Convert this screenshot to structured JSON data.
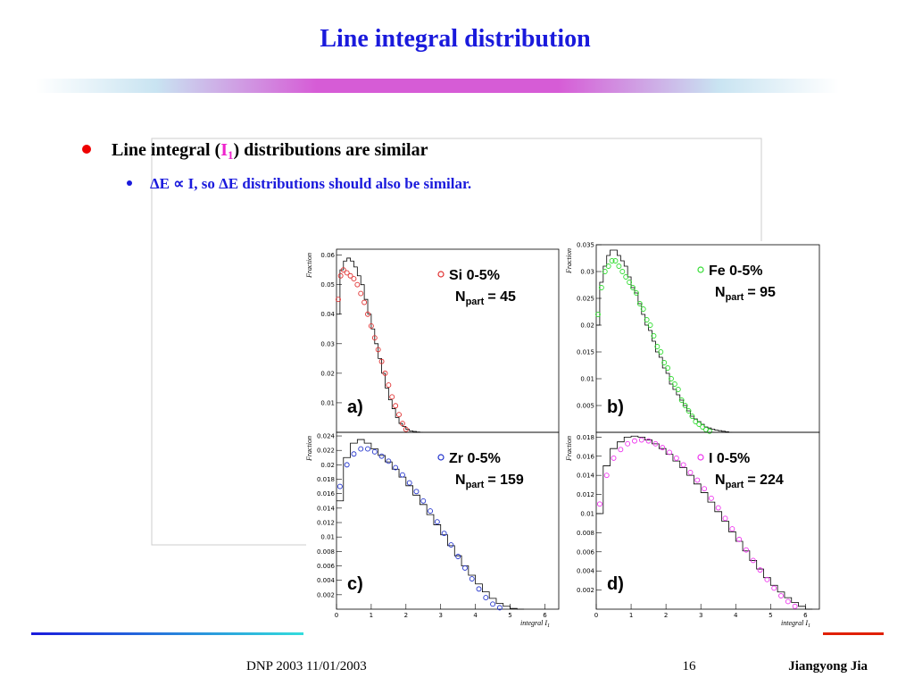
{
  "title": "Line integral distribution",
  "bullets": [
    {
      "parts": [
        "Line integral (",
        "I",
        "1",
        ") distributions are similar"
      ]
    },
    {
      "text": "ΔE ∝ I, so ΔE distributions should also be similar."
    }
  ],
  "footer": {
    "left": "DNP 2003 11/01/2003",
    "page": "16",
    "author": "Jiangyong Jia"
  },
  "chart_data": [
    {
      "type": "scatter",
      "tag": "a)",
      "ylabel": "Fraction",
      "npart_symbol": "N",
      "npart_sub": "part",
      "npart_value": "= 45",
      "xlim": [
        0,
        6.4
      ],
      "ylim": [
        0,
        0.062
      ],
      "yticks": [
        0.01,
        0.02,
        0.03,
        0.04,
        0.05,
        0.06
      ],
      "series": [
        {
          "style": "step",
          "color": "#000000",
          "x": [
            0.05,
            0.15,
            0.25,
            0.35,
            0.45,
            0.55,
            0.65,
            0.75,
            0.85,
            0.95,
            1.05,
            1.15,
            1.25,
            1.35,
            1.45,
            1.55,
            1.65,
            1.75,
            1.85,
            1.95,
            2.05,
            2.15,
            2.25,
            2.35,
            2.45
          ],
          "values": [
            0.04,
            0.055,
            0.058,
            0.059,
            0.058,
            0.056,
            0.053,
            0.05,
            0.045,
            0.04,
            0.035,
            0.03,
            0.025,
            0.02,
            0.015,
            0.011,
            0.008,
            0.005,
            0.003,
            0.002,
            0.001,
            0.0005,
            0.0003,
            0.0001,
            0
          ]
        },
        {
          "name": "Si 0-5%",
          "style": "markers",
          "color": "#e03030",
          "x": [
            0.05,
            0.12,
            0.2,
            0.3,
            0.4,
            0.5,
            0.6,
            0.7,
            0.8,
            0.9,
            1.0,
            1.1,
            1.2,
            1.3,
            1.4,
            1.5,
            1.6,
            1.7,
            1.8,
            1.9,
            2.0
          ],
          "values": [
            0.045,
            0.053,
            0.055,
            0.054,
            0.053,
            0.052,
            0.05,
            0.047,
            0.044,
            0.04,
            0.036,
            0.032,
            0.028,
            0.024,
            0.02,
            0.016,
            0.012,
            0.009,
            0.006,
            0.003,
            0.001
          ]
        }
      ]
    },
    {
      "type": "scatter",
      "tag": "b)",
      "ylabel": "Fraction",
      "npart_symbol": "N",
      "npart_sub": "part",
      "npart_value": "= 95",
      "xlim": [
        0,
        6.4
      ],
      "ylim": [
        0,
        0.035
      ],
      "yticks": [
        0.005,
        0.01,
        0.015,
        0.02,
        0.025,
        0.03,
        0.035
      ],
      "series": [
        {
          "style": "step",
          "color": "#000000",
          "x": [
            0.05,
            0.15,
            0.25,
            0.35,
            0.45,
            0.55,
            0.65,
            0.75,
            0.85,
            0.95,
            1.05,
            1.15,
            1.25,
            1.35,
            1.45,
            1.55,
            1.65,
            1.75,
            1.85,
            1.95,
            2.05,
            2.15,
            2.25,
            2.35,
            2.45,
            2.55,
            2.65,
            2.75,
            2.85,
            2.95,
            3.05,
            3.15,
            3.25,
            3.35,
            3.45,
            3.55,
            3.65,
            3.75,
            3.85
          ],
          "values": [
            0.02,
            0.028,
            0.031,
            0.033,
            0.034,
            0.034,
            0.033,
            0.032,
            0.031,
            0.029,
            0.027,
            0.026,
            0.024,
            0.022,
            0.02,
            0.019,
            0.017,
            0.015,
            0.014,
            0.012,
            0.011,
            0.009,
            0.008,
            0.007,
            0.006,
            0.005,
            0.004,
            0.003,
            0.0025,
            0.002,
            0.0015,
            0.001,
            0.0008,
            0.0006,
            0.0004,
            0.0003,
            0.0002,
            0.0001,
            0
          ]
        },
        {
          "name": "Fe 0-5%",
          "style": "markers",
          "color": "#33dd33",
          "x": [
            0.05,
            0.15,
            0.25,
            0.35,
            0.45,
            0.55,
            0.65,
            0.75,
            0.85,
            0.95,
            1.05,
            1.15,
            1.25,
            1.35,
            1.45,
            1.55,
            1.65,
            1.75,
            1.85,
            1.95,
            2.05,
            2.15,
            2.25,
            2.35,
            2.45,
            2.55,
            2.65,
            2.75,
            2.85,
            2.95,
            3.05,
            3.15,
            3.25
          ],
          "values": [
            0.022,
            0.027,
            0.03,
            0.031,
            0.032,
            0.032,
            0.031,
            0.03,
            0.029,
            0.028,
            0.027,
            0.026,
            0.024,
            0.023,
            0.021,
            0.02,
            0.018,
            0.016,
            0.015,
            0.013,
            0.012,
            0.01,
            0.009,
            0.008,
            0.006,
            0.005,
            0.004,
            0.003,
            0.002,
            0.0015,
            0.001,
            0.0005,
            0.0002
          ]
        }
      ]
    },
    {
      "type": "scatter",
      "tag": "c)",
      "ylabel": "Fraction",
      "xlabel": "integral I",
      "xlabel_sub": "1",
      "npart_symbol": "N",
      "npart_sub": "part",
      "npart_value": "= 159",
      "xlim": [
        0,
        6.4
      ],
      "ylim": [
        0,
        0.0245
      ],
      "xticks": [
        0,
        1,
        2,
        3,
        4,
        5,
        6
      ],
      "yticks": [
        0.002,
        0.004,
        0.006,
        0.008,
        0.01,
        0.012,
        0.014,
        0.016,
        0.018,
        0.02,
        0.022,
        0.024
      ],
      "series": [
        {
          "style": "step",
          "color": "#000000",
          "x": [
            0.1,
            0.3,
            0.5,
            0.7,
            0.9,
            1.1,
            1.3,
            1.5,
            1.7,
            1.9,
            2.1,
            2.3,
            2.5,
            2.7,
            2.9,
            3.1,
            3.3,
            3.5,
            3.7,
            3.9,
            4.1,
            4.3,
            4.5,
            4.7,
            4.9,
            5.1,
            5.3
          ],
          "values": [
            0.015,
            0.021,
            0.023,
            0.0235,
            0.023,
            0.0222,
            0.0213,
            0.0204,
            0.0194,
            0.0183,
            0.0171,
            0.0158,
            0.0145,
            0.0131,
            0.0117,
            0.0103,
            0.0088,
            0.0074,
            0.006,
            0.0047,
            0.0035,
            0.0024,
            0.0015,
            0.0008,
            0.0004,
            0.0001,
            0
          ]
        },
        {
          "name": "Zr 0-5%",
          "style": "markers",
          "color": "#2233cc",
          "x": [
            0.1,
            0.3,
            0.5,
            0.7,
            0.9,
            1.1,
            1.3,
            1.5,
            1.7,
            1.9,
            2.1,
            2.3,
            2.5,
            2.7,
            2.9,
            3.1,
            3.3,
            3.5,
            3.7,
            3.9,
            4.1,
            4.3,
            4.5,
            4.7
          ],
          "values": [
            0.017,
            0.02,
            0.0215,
            0.0222,
            0.0222,
            0.0218,
            0.0212,
            0.0205,
            0.0196,
            0.0186,
            0.0175,
            0.0163,
            0.015,
            0.0136,
            0.0121,
            0.0105,
            0.0089,
            0.0073,
            0.0057,
            0.0042,
            0.0028,
            0.0016,
            0.0007,
            0.0002
          ]
        }
      ]
    },
    {
      "type": "scatter",
      "tag": "d)",
      "ylabel": "Fraction",
      "xlabel": "integral I",
      "xlabel_sub": "1",
      "npart_symbol": "N",
      "npart_sub": "part",
      "npart_value": "= 224",
      "xlim": [
        0,
        6.4
      ],
      "ylim": [
        0,
        0.0185
      ],
      "xticks": [
        0,
        1,
        2,
        3,
        4,
        5,
        6
      ],
      "yticks": [
        0.002,
        0.004,
        0.006,
        0.008,
        0.01,
        0.012,
        0.014,
        0.016,
        0.018
      ],
      "series": [
        {
          "style": "step",
          "color": "#000000",
          "x": [
            0.1,
            0.3,
            0.5,
            0.7,
            0.9,
            1.1,
            1.3,
            1.5,
            1.7,
            1.9,
            2.1,
            2.3,
            2.5,
            2.7,
            2.9,
            3.1,
            3.3,
            3.5,
            3.7,
            3.9,
            4.1,
            4.3,
            4.5,
            4.7,
            4.9,
            5.1,
            5.3,
            5.5,
            5.7,
            5.9,
            6.1
          ],
          "values": [
            0.01,
            0.015,
            0.0168,
            0.0175,
            0.018,
            0.0181,
            0.018,
            0.0177,
            0.0173,
            0.0168,
            0.0162,
            0.0155,
            0.0148,
            0.014,
            0.0131,
            0.0122,
            0.0112,
            0.0102,
            0.0092,
            0.0081,
            0.0071,
            0.0061,
            0.0051,
            0.0042,
            0.0033,
            0.0025,
            0.0018,
            0.0012,
            0.0007,
            0.0003,
            0
          ]
        },
        {
          "name": "I 0-5%",
          "style": "markers",
          "color": "#ee33ee",
          "x": [
            0.1,
            0.3,
            0.5,
            0.7,
            0.9,
            1.1,
            1.3,
            1.5,
            1.7,
            1.9,
            2.1,
            2.3,
            2.5,
            2.7,
            2.9,
            3.1,
            3.3,
            3.5,
            3.7,
            3.9,
            4.1,
            4.3,
            4.5,
            4.7,
            4.9,
            5.1,
            5.3,
            5.5,
            5.7
          ],
          "values": [
            0.011,
            0.014,
            0.0158,
            0.0167,
            0.0173,
            0.0176,
            0.0177,
            0.0176,
            0.0173,
            0.0169,
            0.0164,
            0.0158,
            0.0151,
            0.0143,
            0.0135,
            0.0126,
            0.0116,
            0.0106,
            0.0095,
            0.0084,
            0.0073,
            0.0062,
            0.0051,
            0.0041,
            0.0031,
            0.0022,
            0.0014,
            0.0008,
            0.0003
          ]
        }
      ]
    }
  ]
}
